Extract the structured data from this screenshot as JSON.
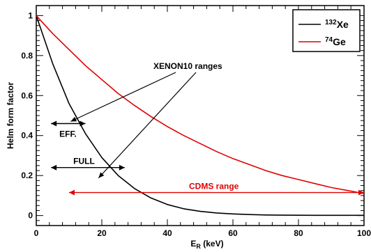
{
  "chart_data": {
    "type": "line",
    "xlabel_main": "E",
    "xlabel_sub": "R",
    "xlabel_unit": " (keV)",
    "ylabel": "Helm form factor",
    "xlim": [
      0,
      100
    ],
    "ylim": [
      -0.05,
      1.05
    ],
    "x_ticks": [
      "0",
      "20",
      "40",
      "60",
      "80",
      "100"
    ],
    "y_ticks": [
      "0",
      "0.2",
      "0.4",
      "0.6",
      "0.8",
      "1"
    ],
    "grid": false,
    "legend_position": "top-right",
    "series": [
      {
        "name_sup": "132",
        "name_main": "Xe",
        "color": "#000000",
        "x": [
          0,
          5,
          10,
          15,
          20,
          25,
          30,
          35,
          40,
          45,
          50,
          55,
          60,
          65,
          70,
          75,
          80,
          85,
          90,
          95,
          100
        ],
        "y": [
          1.0,
          0.76,
          0.56,
          0.41,
          0.29,
          0.2,
          0.135,
          0.088,
          0.055,
          0.034,
          0.021,
          0.013,
          0.008,
          0.005,
          0.003,
          0.002,
          0.0015,
          0.001,
          0.001,
          0.001,
          0.001
        ]
      },
      {
        "name_sup": "74",
        "name_main": "Ge",
        "color": "#e00000",
        "x": [
          0,
          5,
          10,
          15,
          20,
          25,
          30,
          35,
          40,
          45,
          50,
          55,
          60,
          65,
          70,
          75,
          80,
          85,
          90,
          95,
          100
        ],
        "y": [
          1.0,
          0.91,
          0.83,
          0.75,
          0.68,
          0.61,
          0.55,
          0.495,
          0.445,
          0.4,
          0.36,
          0.32,
          0.285,
          0.255,
          0.225,
          0.2,
          0.18,
          0.16,
          0.14,
          0.125,
          0.11
        ]
      }
    ],
    "annotations": {
      "xenon_title": "XENON10 ranges",
      "eff_label": "EFF.",
      "eff_range": [
        4.5,
        15.0
      ],
      "eff_y": 0.46,
      "full_label": "FULL",
      "full_range": [
        4.5,
        27.0
      ],
      "full_y": 0.24,
      "cdms_label": "CDMS range",
      "cdms_range": [
        10,
        100
      ],
      "cdms_y": 0.115,
      "cdms_color": "#e00000"
    }
  }
}
